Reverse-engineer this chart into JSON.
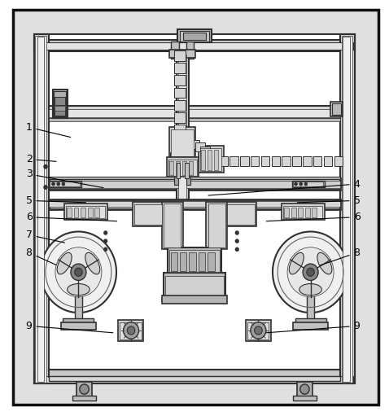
{
  "background_color": "#ffffff",
  "frame_ec": "#2a2a2a",
  "dark": "#303030",
  "med": "#606060",
  "light": "#c8c8c8",
  "vlight": "#e8e8e8",
  "figsize": [
    4.78,
    5.11
  ],
  "dpi": 100,
  "label_positions": {
    "1": [
      0.072,
      0.695,
      0.185,
      0.67
    ],
    "2": [
      0.072,
      0.618,
      0.148,
      0.612
    ],
    "3": [
      0.072,
      0.582,
      0.27,
      0.548
    ],
    "4": [
      0.92,
      0.558,
      0.53,
      0.53
    ],
    "5L": [
      0.072,
      0.518,
      0.225,
      0.513
    ],
    "5R": [
      0.92,
      0.518,
      0.76,
      0.513
    ],
    "6L": [
      0.072,
      0.478,
      0.305,
      0.468
    ],
    "6R": [
      0.92,
      0.478,
      0.68,
      0.468
    ],
    "7": [
      0.072,
      0.435,
      0.17,
      0.415
    ],
    "8L": [
      0.072,
      0.392,
      0.148,
      0.36
    ],
    "8R": [
      0.92,
      0.392,
      0.82,
      0.36
    ],
    "9L": [
      0.072,
      0.215,
      0.295,
      0.198
    ],
    "9R": [
      0.92,
      0.215,
      0.68,
      0.198
    ]
  }
}
